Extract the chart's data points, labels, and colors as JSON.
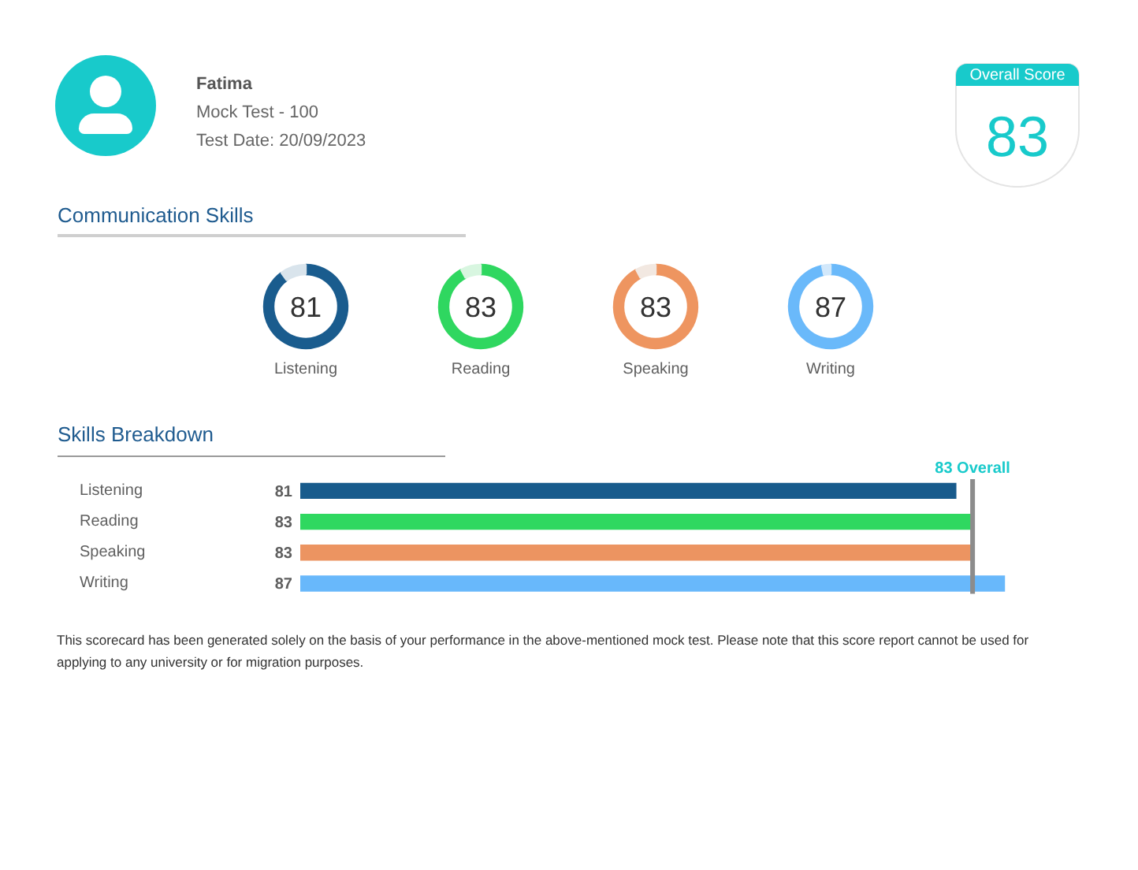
{
  "chart_data": [
    {
      "type": "other",
      "title": "Fatima",
      "annotations": [
        "Mock Test - 100",
        "Test Date: 20/09/2023"
      ]
    },
    {
      "type": "other",
      "title": "Overall Score",
      "annotations": [
        "83"
      ]
    },
    {
      "type": "other",
      "title": "Communication Skills"
    },
    {
      "type": "donut",
      "title": "Listening",
      "categories": [
        null,
        null
      ],
      "values": [
        81,
        9
      ],
      "colors": [
        "#1a5c8e",
        "#d9e4ec"
      ],
      "value_labels": [
        "81",
        null
      ]
    },
    {
      "type": "donut",
      "title": "Reading",
      "categories": [
        null,
        null
      ],
      "values": [
        83,
        7
      ],
      "colors": [
        "#2fd760",
        "#d8f6e0"
      ],
      "value_labels": [
        "83",
        null
      ]
    },
    {
      "type": "donut",
      "title": "Speaking",
      "categories": [
        null,
        null
      ],
      "values": [
        83,
        7
      ],
      "colors": [
        "#ee9560",
        "#f2e8e1"
      ],
      "value_labels": [
        "83",
        null
      ]
    },
    {
      "type": "donut",
      "title": "Writing",
      "categories": [
        null,
        null
      ],
      "values": [
        87,
        3
      ],
      "colors": [
        "#6ab9fa",
        "#d2e8fb"
      ],
      "value_labels": [
        "87",
        null
      ]
    },
    {
      "type": "bar",
      "title": "Skills Breakdown",
      "orientation": "horizontal",
      "categories": [
        "Listening",
        "Reading",
        "Speaking",
        "Writing"
      ],
      "values": [
        81,
        83,
        83,
        87
      ],
      "colors": [
        "#185b8c",
        "#2fd860",
        "#ec9461",
        "#68b8fb"
      ],
      "data_labels": true,
      "tick_labels": "y",
      "ref_lines": [
        {
          "axis": "x",
          "value": 83,
          "label": "83 Overall",
          "color": "#8c8c8c"
        }
      ],
      "annotations": [
        "This scorecard has been generated solely on the basis of your performance in the above-mentioned mock test. Please note that this score report cannot be used for applying to any university or for migration purposes."
      ]
    }
  ]
}
